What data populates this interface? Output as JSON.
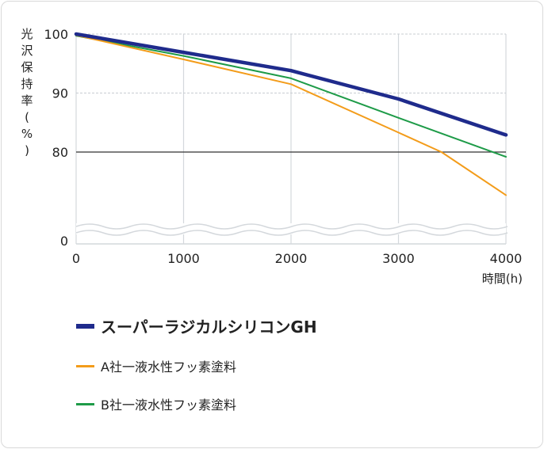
{
  "chart_data": {
    "type": "line",
    "ylabel": "光沢保持率(%)",
    "xlabel": "時間(h)",
    "x_ticks": [
      "0",
      "1000",
      "2000",
      "3000",
      "4000"
    ],
    "y_ticks": [
      "0",
      "80",
      "90",
      "100"
    ],
    "xlim": [
      0,
      4000
    ],
    "axis_break": true,
    "reference_line": 80,
    "grid": true,
    "legend_position": "bottom-left",
    "series": [
      {
        "name": "スーパーラジカルシリコンGH",
        "color": "#1f2b8c",
        "x": [
          0,
          1000,
          2000,
          3000,
          4000
        ],
        "y": [
          100,
          96.9,
          93.8,
          89.0,
          82.9
        ]
      },
      {
        "name": "A社一液水性フッ素塗料",
        "color": "#f39c1a",
        "x": [
          0,
          1000,
          2000,
          3000,
          3400,
          4000
        ],
        "y": [
          99.8,
          95.7,
          91.5,
          83.3,
          80.0,
          72.7
        ]
      },
      {
        "name": "B社一液水性フッ素塗料",
        "color": "#1e9b48",
        "x": [
          0,
          1000,
          2000,
          3000,
          4000
        ],
        "y": [
          99.7,
          96.3,
          92.5,
          85.8,
          79.2
        ]
      }
    ]
  }
}
